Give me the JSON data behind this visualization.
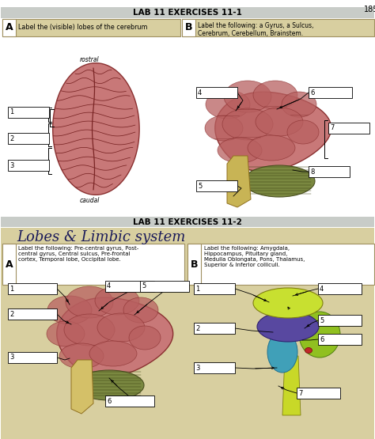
{
  "bg_color": "#ffffff",
  "page_num": "185",
  "s1_header": "LAB 11 EXERCISES 11-1",
  "s1_header_bg": "#c8ccc8",
  "s1_box_bg": "#d8cfa0",
  "s1_A_text": "Label the (visible) lobes of the cerebrum",
  "s1_B_text": "Label the following: a Gyrus, a Sulcus,\nCerebrum, Cerebellum, Brainstem.",
  "rostral": "rostral",
  "caudal": "caudal",
  "s2_header": "LAB 11 EXERCISES 11-2",
  "s2_header_bg": "#c8ccc8",
  "s2_bg": "#d8cfa0",
  "s2_title": "Lobes & Limbic system",
  "s2_A_text": "Label the following: Pre-central gyrus, Post-\ncentral gyrus, Central sulcus, Pre-frontal\ncortex, Temporal lobe, Occipital lobe.",
  "s2_B_text": "Label the following: Amygdala,\nHippocampus, Pituitary gland,\nMedulla Oblongata, Pons, Thalamus,\nSuperior & Inferior colliculi.",
  "pink": "#c87878",
  "pink_dark": "#a85050",
  "pink_shadow": "#b86060",
  "green_cb": "#7a8840",
  "tan_stem": "#c8b455",
  "tan_stem2": "#d4c068",
  "green2": "#8ab828",
  "purple": "#5848a0",
  "teal": "#40a0b8",
  "yellow_th": "#c8e040",
  "red_pit": "#c02828"
}
